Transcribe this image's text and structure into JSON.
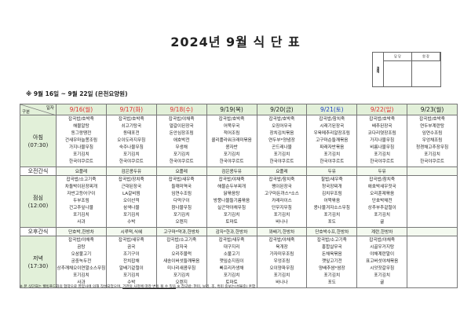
{
  "title": "2024년 9월 식 단 표",
  "approval": {
    "label": "결재",
    "col1": "담 당",
    "col2": "원 장"
  },
  "subtitle": "※ 9월 16일 ~ 9월 22일 (은천요양원)",
  "corner": {
    "top": "일자",
    "bottom": "구분"
  },
  "colors": {
    "header_bg": "#e2f0d9",
    "weekday": "#222222",
    "holiday_red": "#e03030",
    "saturday_blue": "#2040c0"
  },
  "days": [
    {
      "label": "9/16(월)",
      "color": "red"
    },
    {
      "label": "9/17(화)",
      "color": "red"
    },
    {
      "label": "9/18(수)",
      "color": "red"
    },
    {
      "label": "9/19(목)",
      "color": "black"
    },
    {
      "label": "9/20(금)",
      "color": "black"
    },
    {
      "label": "9/21(토)",
      "color": "blue"
    },
    {
      "label": "9/22(일)",
      "color": "red"
    },
    {
      "label": "9/23(월)",
      "color": "black"
    }
  ],
  "rows": [
    {
      "label": "아침\n(07:30)",
      "type": "meal",
      "cells": [
        [
          "잡곡밥/호박죽",
          "해물알탕",
          "동그랑땡전",
          "건새우마늘쫑조림",
          "가지나물무침",
          "포기김치",
          "한국야쿠르트"
        ],
        [
          "잡곡밥/호박죽",
          "쇠고기탕국",
          "동태포전",
          "오이도라지무침",
          "숙주나물무침",
          "포기김치",
          "한국야쿠르트"
        ],
        [
          "잡곡밥/야채죽",
          "얼갈이된장국",
          "돈안심장조림",
          "애호박전",
          "무생채",
          "포기김치",
          "한국야쿠르트"
        ],
        [
          "잡곡밥/호박죽",
          "어묵무국",
          "적어조림",
          "콜리플라워크래미볶음",
          "콩자반",
          "포기김치",
          "한국야쿠르트"
        ],
        [
          "잡곡밥/호박죽",
          "오징어무국",
          "장치김치볶음",
          "연두부*양념장",
          "곤드레나물",
          "포기김치",
          "한국야쿠르트"
        ],
        [
          "잡곡밥/참치죽",
          "시래기된장국",
          "우육메추리알장조림",
          "고구마순들깨볶음",
          "파래자반볶음",
          "포기김치",
          "한국야쿠르트"
        ],
        [
          "잡곡밥/호박죽",
          "배추된장국",
          "코다리엿장조림",
          "가지나물무침",
          "비름나물무침",
          "포기김치",
          "한국야쿠르트"
        ],
        [
          "잡곡밥/호박죽",
          "연두부계란탕",
          "임연수조림",
          "우엉채조림",
          "청경채고추장무침",
          "포기김치",
          "한국야쿠르트"
        ]
      ]
    },
    {
      "label": "오전간식",
      "type": "snack",
      "cells": [
        "요플레",
        "검은콩두유",
        "요플레",
        "검은콩두유",
        "요플레",
        "두유",
        "두유",
        ""
      ]
    },
    {
      "label": "점심\n(12:00)",
      "type": "meal",
      "cells": [
        [
          "잡곡밥/소고기죽",
          "차돌박이된장찌개",
          "자반고등어구이",
          "두부조림",
          "건고추잎나물",
          "포기김치",
          "사과"
        ],
        [
          "잡곡밥/장치죽",
          "근대된장국",
          "LA갈비찜",
          "오이산적",
          "삼색나물",
          "포기김치",
          "수박"
        ],
        [
          "잡곡밥/새우죽",
          "들깨미역국",
          "임연수조림",
          "다먹구이",
          "참나물무침",
          "포기김치",
          "오렌지"
        ],
        [
          "잡곡밥/야채죽",
          "해물순두부찌개",
          "닭볶음탕",
          "방풍나물들기름볶음",
          "실곤약야채무침",
          "포기김치",
          "토마토"
        ],
        [
          "잡곡밥/참치죽",
          "팽이된장국",
          "고구마돈까스*소스",
          "카레라이스",
          "단무지무침",
          "포기김치",
          "바나나"
        ],
        [
          "찰밥/새우죽",
          "청국장찌개",
          "김치무조림",
          "어묵볶음",
          "콩나물겨자소스무침",
          "포기김치",
          "포도"
        ],
        [
          "잡곡밥/참치죽",
          "애호박새우젓국",
          "오리훈제볶음",
          "단호박채전",
          "상추부추겉절이",
          "포기김치",
          "귤"
        ],
        []
      ]
    },
    {
      "label": "오후간식",
      "type": "snack",
      "cells": [
        "단호박,한방차",
        "시루떡,식혜",
        "고구마*약과,한방차",
        "감자*한과,한방차",
        "꽈배기,한방차",
        "단호박수프,한방차",
        "계란,한방차",
        ""
      ]
    },
    {
      "label": "저녁\n(17:30)",
      "type": "meal",
      "cells": [
        [
          "잡곡밥/야채죽",
          "곰탕",
          "오삼불고기",
          "궁중녹두전",
          "상추깨채오이연말소스무침",
          "포기김치",
          "사과"
        ],
        [
          "잡곡밥/새우죽",
          "곰국",
          "조기구이",
          "잔치잡채",
          "알배기겉절이",
          "포기김치",
          "수박"
        ],
        [
          "잡곡밥/소고기죽",
          "감자국",
          "오리주물럭",
          "새송이버섯들깨볶음",
          "미나리새콤무침",
          "포기김치",
          "오렌지"
        ],
        [
          "잡곡밥/새우죽",
          "대구지리",
          "소불고기",
          "깻잎순지짐이",
          "빠프리카생채",
          "포기김치",
          "토마토"
        ],
        [
          "잡곡밥/야채죽",
          "육개장",
          "가자미무조림",
          "우엉조림",
          "오이양파무침",
          "포기김치",
          "바나나"
        ],
        [
          "잡곡밥/소고기죽",
          "홍합살무국",
          "돈채육볶음",
          "깻잎고기전",
          "양배추쌈*쌈장",
          "포기김치",
          "포도"
        ],
        [
          "잡곡밥/야채죽",
          "시골우거지탕",
          "야채계란말이",
          "표고버섯야채볶음",
          "시앗잣갈무침",
          "포기김치",
          "귤"
        ],
        []
      ]
    }
  ],
  "footer": {
    "note1": "※ 본 식단표는 웰빙푸드와의 협약으로 영양사에 의해 작성되었으며, ",
    "note_underlined": "기관의 사정에 따라 변동 될 수 있음",
    "note2": " ※ 잡곡밥: 현미, 보리, 조, 흑미 중보는(성물중) 혼합"
  }
}
